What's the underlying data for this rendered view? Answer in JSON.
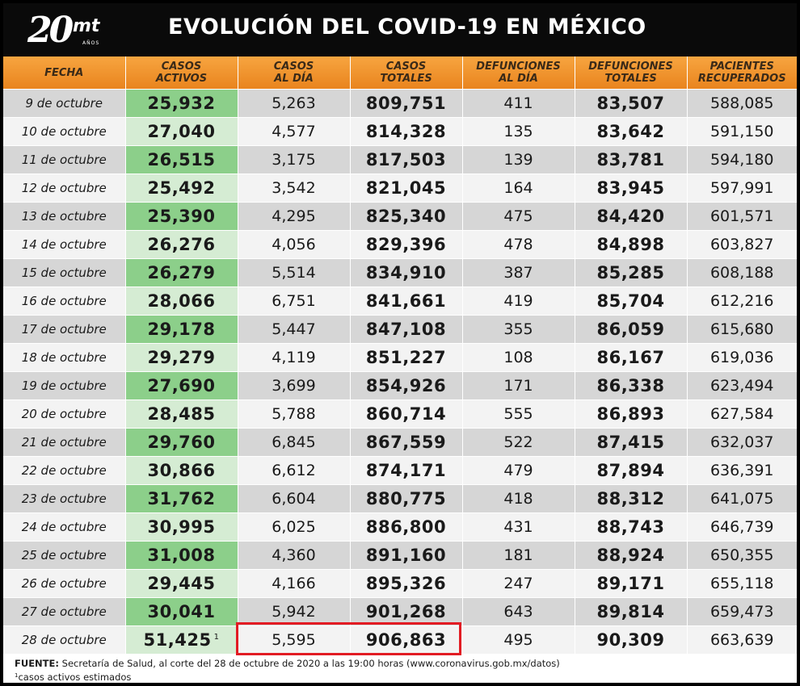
{
  "header": {
    "logo_number": "20",
    "logo_letters": "mt",
    "logo_sub": "AÑOS",
    "title": "EVOLUCIÓN DEL COVID-19 EN MÉXICO"
  },
  "table": {
    "columns": [
      "FECHA",
      "CASOS\nACTIVOS",
      "CASOS\nAL DÍA",
      "CASOS\nTOTALES",
      "DEFUNCIONES\nAL DÍA",
      "DEFUNCIONES\nTOTALES",
      "PACIENTES\nRECUPERADOS"
    ],
    "rows": [
      [
        "9 de octubre",
        "25,932",
        "5,263",
        "809,751",
        "411",
        "83,507",
        "588,085"
      ],
      [
        "10 de octubre",
        "27,040",
        "4,577",
        "814,328",
        "135",
        "83,642",
        "591,150"
      ],
      [
        "11 de octubre",
        "26,515",
        "3,175",
        "817,503",
        "139",
        "83,781",
        "594,180"
      ],
      [
        "12 de octubre",
        "25,492",
        "3,542",
        "821,045",
        "164",
        "83,945",
        "597,991"
      ],
      [
        "13 de octubre",
        "25,390",
        "4,295",
        "825,340",
        "475",
        "84,420",
        "601,571"
      ],
      [
        "14 de octubre",
        "26,276",
        "4,056",
        "829,396",
        "478",
        "84,898",
        "603,827"
      ],
      [
        "15 de octubre",
        "26,279",
        "5,514",
        "834,910",
        "387",
        "85,285",
        "608,188"
      ],
      [
        "16 de octubre",
        "28,066",
        "6,751",
        "841,661",
        "419",
        "85,704",
        "612,216"
      ],
      [
        "17 de octubre",
        "29,178",
        "5,447",
        "847,108",
        "355",
        "86,059",
        "615,680"
      ],
      [
        "18 de octubre",
        "29,279",
        "4,119",
        "851,227",
        "108",
        "86,167",
        "619,036"
      ],
      [
        "19 de octubre",
        "27,690",
        "3,699",
        "854,926",
        "171",
        "86,338",
        "623,494"
      ],
      [
        "20 de octubre",
        "28,485",
        "5,788",
        "860,714",
        "555",
        "86,893",
        "627,584"
      ],
      [
        "21 de octubre",
        "29,760",
        "6,845",
        "867,559",
        "522",
        "87,415",
        "632,037"
      ],
      [
        "22 de octubre",
        "30,866",
        "6,612",
        "874,171",
        "479",
        "87,894",
        "636,391"
      ],
      [
        "23 de octubre",
        "31,762",
        "6,604",
        "880,775",
        "418",
        "88,312",
        "641,075"
      ],
      [
        "24 de octubre",
        "30,995",
        "6,025",
        "886,800",
        "431",
        "88,743",
        "646,739"
      ],
      [
        "25 de octubre",
        "31,008",
        "4,360",
        "891,160",
        "181",
        "88,924",
        "650,355"
      ],
      [
        "26 de octubre",
        "29,445",
        "4,166",
        "895,326",
        "247",
        "89,171",
        "655,118"
      ],
      [
        "27 de octubre",
        "30,041",
        "5,942",
        "901,268",
        "643",
        "89,814",
        "659,473"
      ],
      [
        "28 de octubre",
        "51,425",
        "5,595",
        "906,863",
        "495",
        "90,309",
        "663,639"
      ]
    ],
    "last_row_footnote_mark": "1"
  },
  "footer": {
    "source_label": "FUENTE:",
    "source_text": " Secretaría de Salud, al corte del 28 de octubre de 2020 a las 19:00 horas (www.coronavirus.gob.mx/datos)",
    "note_mark": "1",
    "note_text": "casos activos estimados"
  },
  "colors": {
    "header_bg": "#0a0a0a",
    "column_header": "#f0962e",
    "active_cases_green": "#8ccf8a",
    "highlight_red": "#e21b23"
  }
}
